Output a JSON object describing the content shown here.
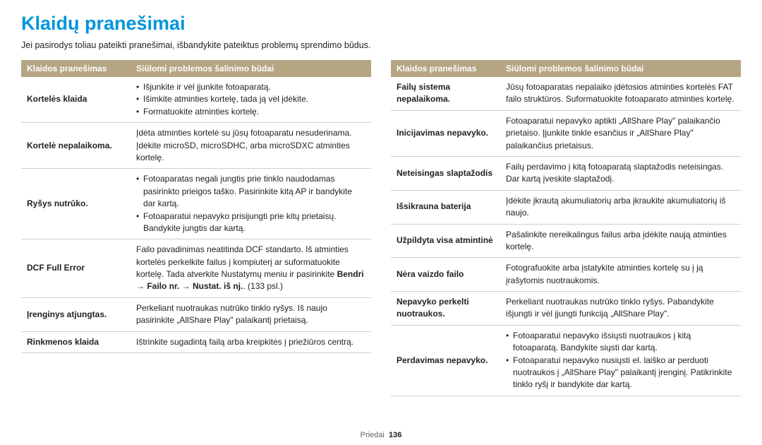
{
  "title": "Klaidų pranešimai",
  "intro": "Jei pasirodys toliau pateikti pranešimai, išbandykite pateiktus problemų sprendimo būdus.",
  "header1": "Klaidos pranešimas",
  "header2": "Siūlomi problemos šalinimo būdai",
  "left": [
    {
      "label": "Kortelės klaida",
      "type": "list",
      "items": [
        "Išjunkite ir vėl įjunkite fotoaparatą.",
        "Išimkite atminties kortelę, tada ją vėl įdėkite.",
        "Formatuokite atminties kortelę."
      ]
    },
    {
      "label": "Kortelė nepalaikoma.",
      "type": "text",
      "text": "Įdėta atminties kortelė su jūsų fotoaparatu nesuderinama. Įdėkite microSD, microSDHC, arba microSDXC atminties kortelę."
    },
    {
      "label": "Ryšys nutrūko.",
      "type": "list",
      "items": [
        "Fotoaparatas negali jungtis prie tinklo naudodamas pasirinkto prieigos taško. Pasirinkite kitą AP ir bandykite dar kartą.",
        "Fotoaparatui nepavyko prisijungti prie kitų prietaisų. Bandykite jungtis dar kartą."
      ]
    },
    {
      "label": "DCF Full Error",
      "type": "dcf",
      "pre": "Failo pavadinimas neatitinda DCF standarto. Iš atminties kortelės perkelkite failus į kompiuterį ar suformatuokite kortelę. Tada atverkite Nustatymų meniu ir pasirinkite ",
      "bold": "Bendri → Failo nr. → Nustat. iš nj.",
      "post": ". (133 psl.)"
    },
    {
      "label": "Įrenginys atjungtas.",
      "type": "text",
      "text": "Perkeliant nuotraukas nutrūko tinklo ryšys. Iš naujo pasirinkite „AllShare Play\" palaikantį prietaisą."
    },
    {
      "label": "Rinkmenos klaida",
      "type": "text",
      "text": "Ištrinkite sugadintą failą arba kreipkitės į priežiūros centrą."
    }
  ],
  "right": [
    {
      "label": "Failų sistema nepalaikoma.",
      "type": "text",
      "text": "Jūsų fotoaparatas nepalaiko įdėtosios atminties kortelės FAT failo struktūros. Suformatuokite fotoaparato atminties kortelę."
    },
    {
      "label": "Inicijavimas nepavyko.",
      "type": "text",
      "text": "Fotoaparatui nepavyko aptikti „AllShare Play\" palaikančio prietaiso. Įjunkite tinkle esančius ir „AllShare Play\" palaikančius prietaisus."
    },
    {
      "label": "Neteisingas slaptažodis",
      "type": "text",
      "text": "Failų perdavimo į kitą fotoaparatą slaptažodis neteisingas. Dar kartą įveskite slaptažodį."
    },
    {
      "label": "Išsikrauna baterija",
      "type": "text",
      "text": "Įdėkite įkrautą akumuliatorių arba įkraukite akumuliatorių iš naujo."
    },
    {
      "label": "Užpildyta visa atmintinė",
      "type": "text",
      "text": "Pašalinkite nereikalingus failus arba įdėkite naują atminties kortelę."
    },
    {
      "label": "Nėra vaizdo failo",
      "type": "text",
      "text": "Fotografuokite arba įstatykite atminties kortelę su į ją įrašytomis nuotraukomis."
    },
    {
      "label": "Nepavyko perkelti nuotraukos.",
      "type": "text",
      "text": "Perkeliant nuotraukas nutrūko tinklo ryšys. Pabandykite išjungti ir vėl įjungti funkciją „AllShare Play\"."
    },
    {
      "label": "Perdavimas nepavyko.",
      "type": "list",
      "items": [
        "Fotoaparatui nepavyko išsiųsti nuotraukos į kitą fotoaparatą. Bandykite siųsti dar kartą.",
        "Fotoaparatui nepavyko nusiųsti el. laiško ar perduoti nuotraukos į „AllShare Play\" palaikantį įrenginį. Patikrinkite tinklo ryšį ir bandykite dar kartą."
      ]
    }
  ],
  "footer_label": "Priedai",
  "footer_page": "136"
}
